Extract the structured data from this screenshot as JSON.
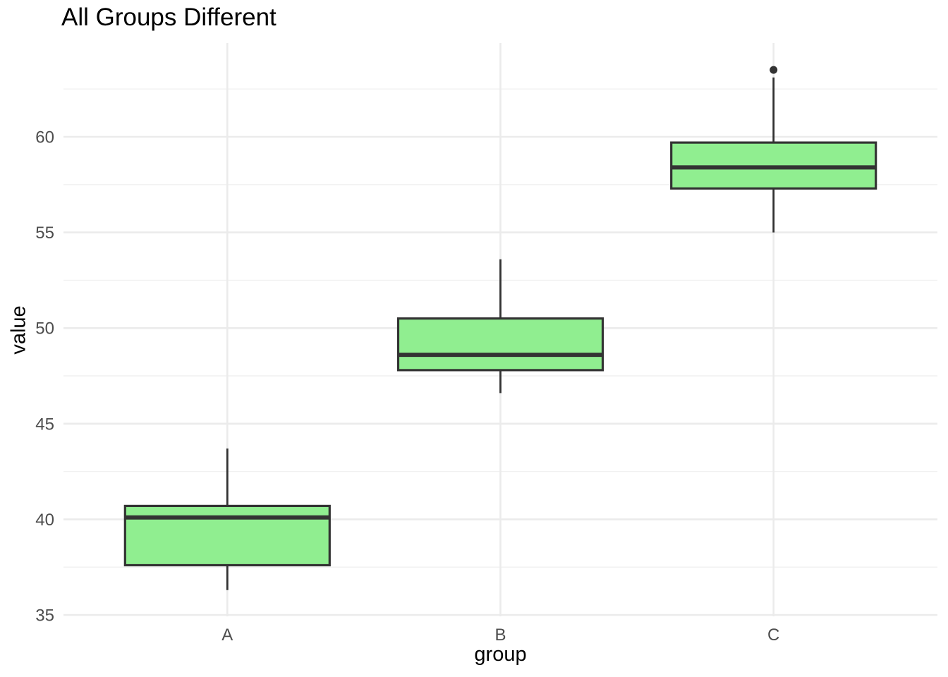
{
  "chart_data": {
    "type": "boxplot",
    "title": "All Groups Different",
    "xlabel": "group",
    "ylabel": "value",
    "categories": [
      "A",
      "B",
      "C"
    ],
    "y_ticks": [
      35,
      40,
      45,
      50,
      55,
      60
    ],
    "y_minor_ticks": [
      37.5,
      42.5,
      47.5,
      52.5,
      57.5,
      62.5
    ],
    "ylim": [
      34.9,
      64.9
    ],
    "grid": true,
    "legend": false,
    "series": [
      {
        "group": "A",
        "whisker_low": 36.3,
        "q1": 37.6,
        "median": 40.1,
        "q3": 40.7,
        "whisker_high": 43.7,
        "outliers": []
      },
      {
        "group": "B",
        "whisker_low": 46.6,
        "q1": 47.8,
        "median": 48.6,
        "q3": 50.5,
        "whisker_high": 53.6,
        "outliers": []
      },
      {
        "group": "C",
        "whisker_low": 55.0,
        "q1": 57.3,
        "median": 58.4,
        "q3": 59.7,
        "whisker_high": 63.1,
        "outliers": [
          63.5
        ]
      }
    ],
    "colors": {
      "background": "#FFFFFF",
      "box_fill": "#90EE90",
      "box_stroke": "#333333",
      "grid_major": "#EBEBEB",
      "grid_minor": "#F1F1F1",
      "tick_label": "#4D4D4D",
      "text": "#000000"
    }
  }
}
